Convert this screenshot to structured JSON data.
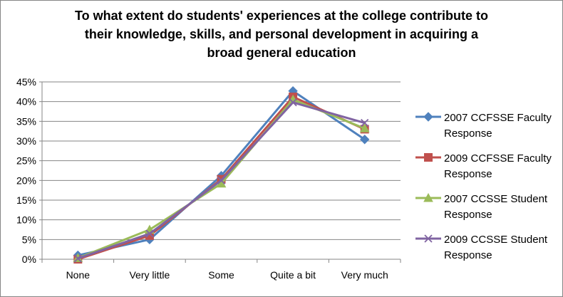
{
  "chart_data": {
    "type": "line",
    "title_lines": [
      "To what extent do students' experiences at the college contribute to",
      "their knowledge, skills, and personal development in acquiring a",
      "broad general education"
    ],
    "categories": [
      "None",
      "Very little",
      "Some",
      "Quite a bit",
      "Very much"
    ],
    "ylim": [
      0,
      45
    ],
    "yticks": [
      "0%",
      "5%",
      "10%",
      "15%",
      "20%",
      "25%",
      "30%",
      "35%",
      "40%",
      "45%"
    ],
    "grid": true,
    "legend_position": "right",
    "series": [
      {
        "name_lines": [
          "2007 CCFSSE Faculty",
          "Response"
        ],
        "color": "#4F81BD",
        "marker": "diamond",
        "values": [
          1.0,
          5.0,
          21.2,
          42.7,
          30.4
        ]
      },
      {
        "name_lines": [
          "2009 CCFSSE Faculty",
          "Response"
        ],
        "color": "#C0504D",
        "marker": "square",
        "values": [
          0.0,
          6.0,
          20.3,
          41.2,
          33.0
        ]
      },
      {
        "name_lines": [
          "2007 CCSSE Student",
          "Response"
        ],
        "color": "#9BBB59",
        "marker": "triangle",
        "values": [
          0.3,
          7.5,
          19.2,
          40.5,
          33.2
        ]
      },
      {
        "name_lines": [
          "2009 CCSSE Student",
          "Response"
        ],
        "color": "#8064A2",
        "marker": "x",
        "values": [
          0.2,
          6.5,
          20.0,
          39.8,
          34.6
        ]
      }
    ]
  }
}
